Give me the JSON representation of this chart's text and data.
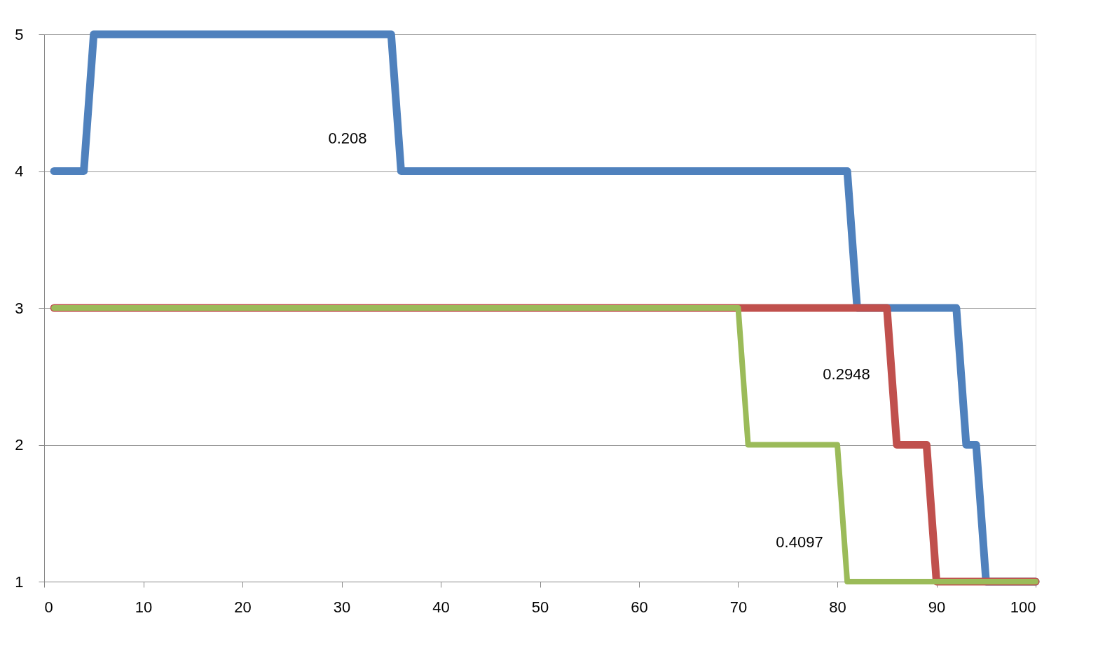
{
  "chart_data": {
    "type": "line",
    "series": [
      {
        "color": "#4f81bd",
        "x": [
          1,
          4,
          5,
          35,
          36,
          81,
          82,
          92,
          93,
          94,
          95,
          100
        ],
        "values": [
          4,
          4,
          5,
          5,
          4,
          4,
          3,
          3,
          2,
          2,
          1,
          1
        ]
      },
      {
        "color": "#c0504d",
        "x": [
          1,
          85,
          86,
          89,
          90,
          100
        ],
        "values": [
          3,
          3,
          2,
          2,
          1,
          1
        ]
      },
      {
        "color": "#9bbb59",
        "x": [
          1,
          70,
          71,
          80,
          81,
          100
        ],
        "values": [
          3,
          3,
          2,
          2,
          1,
          1
        ]
      }
    ],
    "xlim": [
      0,
      100
    ],
    "xticks": [
      0,
      10,
      20,
      30,
      40,
      50,
      60,
      70,
      80,
      90,
      100
    ],
    "ylim": [
      1,
      5
    ],
    "yticks": [
      1,
      2,
      3,
      4,
      5
    ],
    "grid": "y",
    "annotations": [
      "0.208",
      "0.2948",
      "0.4097"
    ]
  }
}
